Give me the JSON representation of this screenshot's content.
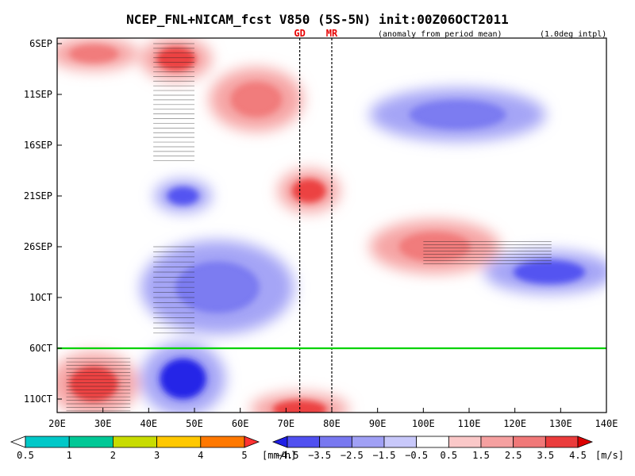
{
  "chart_data": {
    "type": "heatmap",
    "title": "NCEP_FNL+NICAM_fcst V850 (5S-5N) init:00Z06OCT2011",
    "subtitle_left": "(anomaly from period mean)",
    "subtitle_right": "(1.0deg intpl)",
    "x_axis": {
      "range": [
        20,
        140
      ],
      "unit": "longitude (deg E)",
      "ticks": [
        {
          "value": 20,
          "label": "20E"
        },
        {
          "value": 30,
          "label": "30E"
        },
        {
          "value": 40,
          "label": "40E"
        },
        {
          "value": 50,
          "label": "50E"
        },
        {
          "value": 60,
          "label": "60E"
        },
        {
          "value": 70,
          "label": "70E"
        },
        {
          "value": 80,
          "label": "80E"
        },
        {
          "value": 90,
          "label": "90E"
        },
        {
          "value": 100,
          "label": "100E"
        },
        {
          "value": 110,
          "label": "110E"
        },
        {
          "value": 120,
          "label": "120E"
        },
        {
          "value": 130,
          "label": "130E"
        },
        {
          "value": 140,
          "label": "140E"
        }
      ]
    },
    "y_axis": {
      "range_days": [
        0,
        36
      ],
      "unit": "days since 6 Sep 2011 (time increases downward)",
      "ticks": [
        {
          "day": 0,
          "label": "6SEP"
        },
        {
          "day": 5,
          "label": "11SEP"
        },
        {
          "day": 10,
          "label": "16SEP"
        },
        {
          "day": 15,
          "label": "21SEP"
        },
        {
          "day": 20,
          "label": "26SEP"
        },
        {
          "day": 25,
          "label": "1OCT"
        },
        {
          "day": 30,
          "label": "6OCT"
        },
        {
          "day": 35,
          "label": "11OCT"
        }
      ]
    },
    "forecast_init_day": 30,
    "reference_lines": [
      {
        "label": "GD",
        "lon": 73
      },
      {
        "label": "MR",
        "lon": 80
      }
    ],
    "anomaly_features": [
      {
        "sign": "positive",
        "lon": [
          40,
          52
        ],
        "day": [
          0,
          3
        ],
        "value": 4.0
      },
      {
        "sign": "positive",
        "lon": [
          20,
          36
        ],
        "day": [
          0,
          2
        ],
        "value": 3.0
      },
      {
        "sign": "positive",
        "lon": [
          55,
          72
        ],
        "day": [
          3,
          8
        ],
        "value": 3.0
      },
      {
        "sign": "positive",
        "lon": [
          70,
          80
        ],
        "day": [
          13,
          16
        ],
        "value": 4.0
      },
      {
        "sign": "positive",
        "lon": [
          90,
          115
        ],
        "day": [
          18,
          22
        ],
        "value": 3.5
      },
      {
        "sign": "positive",
        "lon": [
          20,
          36
        ],
        "day": [
          31,
          36
        ],
        "value": 4.5
      },
      {
        "sign": "positive",
        "lon": [
          64,
          82
        ],
        "day": [
          35,
          37
        ],
        "value": 4.0
      },
      {
        "sign": "negative",
        "lon": [
          90,
          125
        ],
        "day": [
          5,
          9
        ],
        "value": -3.0
      },
      {
        "sign": "negative",
        "lon": [
          43,
          52
        ],
        "day": [
          14,
          16
        ],
        "value": -3.5
      },
      {
        "sign": "negative",
        "lon": [
          40,
          70
        ],
        "day": [
          20,
          28
        ],
        "value": -3.0
      },
      {
        "sign": "negative",
        "lon": [
          40,
          55
        ],
        "day": [
          30,
          36
        ],
        "value": -4.5
      },
      {
        "sign": "negative",
        "lon": [
          115,
          140
        ],
        "day": [
          21,
          24
        ],
        "value": -3.5
      }
    ],
    "precip_legend": {
      "labels": [
        "0.5",
        "1",
        "2",
        "3",
        "4",
        "5"
      ],
      "unit": "[mm/h]",
      "colors": [
        "#ffffff",
        "#00c8c8",
        "#00c896",
        "#c8dc00",
        "#ffc800",
        "#ff7800",
        "#ff3232"
      ]
    },
    "wind_legend": {
      "labels": [
        "−4.5",
        "−3.5",
        "−2.5",
        "−1.5",
        "−0.5",
        "0.5",
        "1.5",
        "2.5",
        "3.5",
        "4.5"
      ],
      "unit": "[m/s]",
      "colors": [
        "#1e1ee6",
        "#5050f0",
        "#7878f0",
        "#a0a0f5",
        "#c8c8fa",
        "#ffffff",
        "#fac8c8",
        "#f5a0a0",
        "#f07878",
        "#eb3c3c",
        "#dc0000"
      ]
    },
    "forecast_line_color": "#00d200",
    "reference_line_label_color": "#e60000"
  }
}
